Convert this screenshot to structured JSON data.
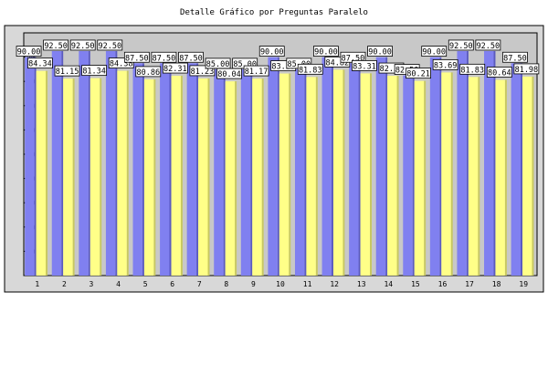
{
  "chart_data": {
    "type": "bar",
    "title": "Detalle Gráfico por Preguntas Paralelo",
    "xlabel": "",
    "ylabel": "",
    "categories": [
      "1",
      "2",
      "3",
      "4",
      "5",
      "6",
      "7",
      "8",
      "9",
      "10",
      "11",
      "12",
      "13",
      "14",
      "15",
      "16",
      "17",
      "18",
      "19"
    ],
    "ylim": [
      0,
      100
    ],
    "yticks": [
      10,
      20,
      30,
      40,
      50,
      60,
      70,
      80,
      90
    ],
    "grid": false,
    "colors": {
      "plot_bg": "#c8c8c8",
      "frame_bg": "#ffffff",
      "series_blue": "#8080f0",
      "series_yellow": "#ffff88",
      "label_bg": "#ffffff"
    },
    "series": [
      {
        "values": [
          90.0,
          92.5,
          92.5,
          92.5,
          87.5,
          87.5,
          87.5,
          85.0,
          85.0,
          90.0,
          85.0,
          90.0,
          87.5,
          90.0,
          82.5,
          90.0,
          92.5,
          92.5,
          87.5
        ]
      },
      {
        "values": [
          84.34,
          81.15,
          81.34,
          84.38,
          80.86,
          82.31,
          81.23,
          80.04,
          81.17,
          83.25,
          81.83,
          84.82,
          83.31,
          82.31,
          80.21,
          83.69,
          81.83,
          80.64,
          81.98
        ]
      }
    ]
  }
}
